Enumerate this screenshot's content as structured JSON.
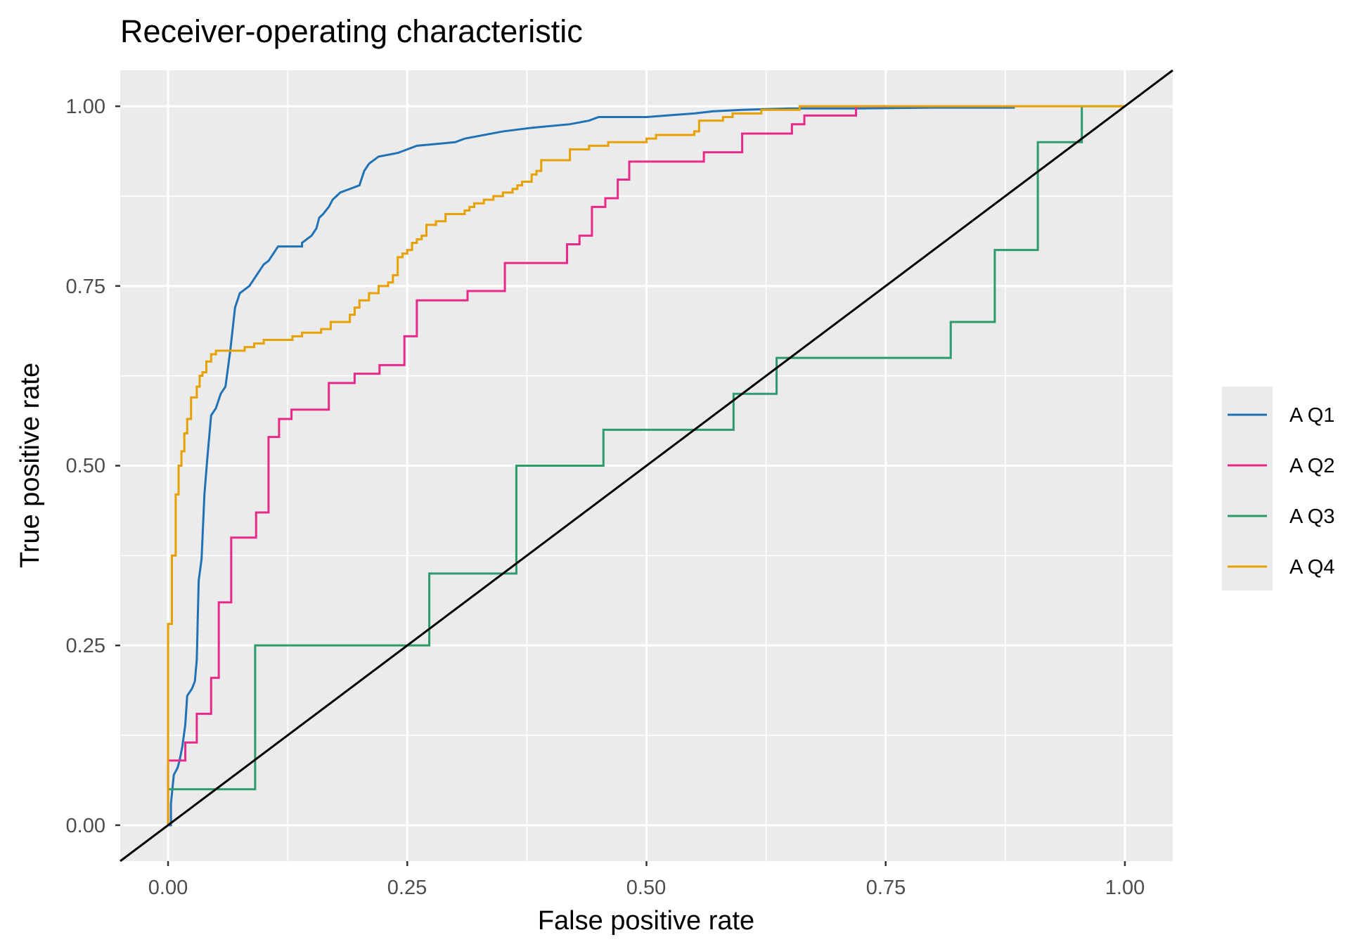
{
  "chart_data": {
    "type": "line",
    "title": "Receiver-operating characteristic",
    "xlabel": "False positive rate",
    "ylabel": "True positive rate",
    "xlim": [
      -0.05,
      1.05
    ],
    "ylim": [
      -0.05,
      1.05
    ],
    "x_ticks": [
      "0.00",
      "0.25",
      "0.50",
      "0.75",
      "1.00"
    ],
    "y_ticks": [
      "0.00",
      "0.25",
      "0.50",
      "0.75",
      "1.00"
    ],
    "grid": true,
    "legend_position": "right",
    "reference_line": {
      "x": [
        -0.05,
        1.05
      ],
      "y": [
        -0.05,
        1.05
      ],
      "color": "#000000"
    },
    "series": [
      {
        "name": "A Q1",
        "color": "#2171b5",
        "points": [
          [
            0,
            0
          ],
          [
            0.003,
            0
          ],
          [
            0.003,
            0.03
          ],
          [
            0.006,
            0.07
          ],
          [
            0.01,
            0.08
          ],
          [
            0.012,
            0.09
          ],
          [
            0.015,
            0.11
          ],
          [
            0.018,
            0.14
          ],
          [
            0.02,
            0.18
          ],
          [
            0.025,
            0.19
          ],
          [
            0.028,
            0.2
          ],
          [
            0.03,
            0.23
          ],
          [
            0.032,
            0.34
          ],
          [
            0.035,
            0.37
          ],
          [
            0.038,
            0.46
          ],
          [
            0.041,
            0.51
          ],
          [
            0.045,
            0.57
          ],
          [
            0.05,
            0.58
          ],
          [
            0.055,
            0.6
          ],
          [
            0.06,
            0.61
          ],
          [
            0.065,
            0.66
          ],
          [
            0.07,
            0.72
          ],
          [
            0.075,
            0.74
          ],
          [
            0.08,
            0.745
          ],
          [
            0.085,
            0.75
          ],
          [
            0.09,
            0.76
          ],
          [
            0.095,
            0.77
          ],
          [
            0.1,
            0.78
          ],
          [
            0.105,
            0.785
          ],
          [
            0.11,
            0.795
          ],
          [
            0.115,
            0.805
          ],
          [
            0.14,
            0.805
          ],
          [
            0.14,
            0.81
          ],
          [
            0.145,
            0.815
          ],
          [
            0.15,
            0.82
          ],
          [
            0.155,
            0.83
          ],
          [
            0.158,
            0.845
          ],
          [
            0.162,
            0.85
          ],
          [
            0.168,
            0.86
          ],
          [
            0.172,
            0.87
          ],
          [
            0.18,
            0.88
          ],
          [
            0.19,
            0.885
          ],
          [
            0.2,
            0.89
          ],
          [
            0.205,
            0.91
          ],
          [
            0.21,
            0.92
          ],
          [
            0.22,
            0.93
          ],
          [
            0.24,
            0.935
          ],
          [
            0.25,
            0.94
          ],
          [
            0.26,
            0.945
          ],
          [
            0.3,
            0.95
          ],
          [
            0.31,
            0.955
          ],
          [
            0.33,
            0.96
          ],
          [
            0.35,
            0.965
          ],
          [
            0.38,
            0.97
          ],
          [
            0.42,
            0.975
          ],
          [
            0.44,
            0.98
          ],
          [
            0.45,
            0.985
          ],
          [
            0.5,
            0.985
          ],
          [
            0.53,
            0.988
          ],
          [
            0.55,
            0.99
          ],
          [
            0.57,
            0.993
          ],
          [
            0.6,
            0.995
          ],
          [
            0.65,
            0.997
          ],
          [
            0.72,
            0.997
          ],
          [
            0.8,
            0.998
          ],
          [
            0.885,
            0.998
          ]
        ]
      },
      {
        "name": "A Q2",
        "color": "#e7298a",
        "points": [
          [
            0,
            0
          ],
          [
            0,
            0.09
          ],
          [
            0.018,
            0.09
          ],
          [
            0.018,
            0.115
          ],
          [
            0.03,
            0.115
          ],
          [
            0.03,
            0.155
          ],
          [
            0.045,
            0.155
          ],
          [
            0.045,
            0.205
          ],
          [
            0.053,
            0.205
          ],
          [
            0.053,
            0.31
          ],
          [
            0.066,
            0.31
          ],
          [
            0.066,
            0.4
          ],
          [
            0.092,
            0.4
          ],
          [
            0.092,
            0.435
          ],
          [
            0.105,
            0.435
          ],
          [
            0.105,
            0.54
          ],
          [
            0.116,
            0.54
          ],
          [
            0.116,
            0.565
          ],
          [
            0.129,
            0.565
          ],
          [
            0.129,
            0.578
          ],
          [
            0.168,
            0.578
          ],
          [
            0.168,
            0.615
          ],
          [
            0.195,
            0.615
          ],
          [
            0.195,
            0.628
          ],
          [
            0.221,
            0.628
          ],
          [
            0.221,
            0.64
          ],
          [
            0.247,
            0.64
          ],
          [
            0.247,
            0.68
          ],
          [
            0.26,
            0.68
          ],
          [
            0.26,
            0.73
          ],
          [
            0.313,
            0.73
          ],
          [
            0.313,
            0.743
          ],
          [
            0.352,
            0.743
          ],
          [
            0.352,
            0.782
          ],
          [
            0.417,
            0.782
          ],
          [
            0.417,
            0.808
          ],
          [
            0.43,
            0.808
          ],
          [
            0.43,
            0.82
          ],
          [
            0.443,
            0.82
          ],
          [
            0.443,
            0.845
          ],
          [
            0.443,
            0.86
          ],
          [
            0.457,
            0.86
          ],
          [
            0.457,
            0.872
          ],
          [
            0.47,
            0.872
          ],
          [
            0.47,
            0.898
          ],
          [
            0.482,
            0.898
          ],
          [
            0.482,
            0.923
          ],
          [
            0.56,
            0.923
          ],
          [
            0.56,
            0.936
          ],
          [
            0.6,
            0.936
          ],
          [
            0.6,
            0.962
          ],
          [
            0.652,
            0.962
          ],
          [
            0.652,
            0.975
          ],
          [
            0.665,
            0.975
          ],
          [
            0.665,
            0.987
          ],
          [
            0.719,
            0.987
          ],
          [
            0.719,
            1.0
          ],
          [
            0.75,
            1.0
          ]
        ]
      },
      {
        "name": "A Q3",
        "color": "#2e9b6e",
        "points": [
          [
            0,
            0
          ],
          [
            0,
            0.05
          ],
          [
            0.091,
            0.05
          ],
          [
            0.091,
            0.25
          ],
          [
            0.273,
            0.25
          ],
          [
            0.273,
            0.35
          ],
          [
            0.364,
            0.35
          ],
          [
            0.364,
            0.5
          ],
          [
            0.455,
            0.5
          ],
          [
            0.455,
            0.55
          ],
          [
            0.591,
            0.55
          ],
          [
            0.591,
            0.6
          ],
          [
            0.636,
            0.6
          ],
          [
            0.636,
            0.65
          ],
          [
            0.818,
            0.65
          ],
          [
            0.818,
            0.7
          ],
          [
            0.864,
            0.7
          ],
          [
            0.864,
            0.8
          ],
          [
            0.909,
            0.8
          ],
          [
            0.909,
            0.95
          ],
          [
            0.955,
            0.95
          ],
          [
            0.955,
            1.0
          ],
          [
            1.0,
            1.0
          ]
        ]
      },
      {
        "name": "A Q4",
        "color": "#e6a000",
        "points": [
          [
            0,
            0
          ],
          [
            0,
            0.28
          ],
          [
            0.004,
            0.28
          ],
          [
            0.004,
            0.375
          ],
          [
            0.008,
            0.375
          ],
          [
            0.008,
            0.46
          ],
          [
            0.011,
            0.46
          ],
          [
            0.011,
            0.5
          ],
          [
            0.014,
            0.5
          ],
          [
            0.014,
            0.52
          ],
          [
            0.017,
            0.52
          ],
          [
            0.017,
            0.545
          ],
          [
            0.02,
            0.545
          ],
          [
            0.02,
            0.565
          ],
          [
            0.024,
            0.565
          ],
          [
            0.024,
            0.595
          ],
          [
            0.03,
            0.595
          ],
          [
            0.03,
            0.61
          ],
          [
            0.033,
            0.61
          ],
          [
            0.033,
            0.625
          ],
          [
            0.036,
            0.625
          ],
          [
            0.036,
            0.63
          ],
          [
            0.04,
            0.63
          ],
          [
            0.04,
            0.645
          ],
          [
            0.045,
            0.645
          ],
          [
            0.045,
            0.655
          ],
          [
            0.05,
            0.655
          ],
          [
            0.05,
            0.66
          ],
          [
            0.08,
            0.66
          ],
          [
            0.08,
            0.665
          ],
          [
            0.09,
            0.665
          ],
          [
            0.09,
            0.67
          ],
          [
            0.1,
            0.67
          ],
          [
            0.1,
            0.675
          ],
          [
            0.13,
            0.675
          ],
          [
            0.13,
            0.68
          ],
          [
            0.14,
            0.68
          ],
          [
            0.14,
            0.685
          ],
          [
            0.16,
            0.685
          ],
          [
            0.16,
            0.69
          ],
          [
            0.17,
            0.69
          ],
          [
            0.17,
            0.7
          ],
          [
            0.19,
            0.7
          ],
          [
            0.19,
            0.71
          ],
          [
            0.195,
            0.71
          ],
          [
            0.195,
            0.72
          ],
          [
            0.2,
            0.72
          ],
          [
            0.2,
            0.73
          ],
          [
            0.21,
            0.73
          ],
          [
            0.21,
            0.74
          ],
          [
            0.22,
            0.74
          ],
          [
            0.22,
            0.75
          ],
          [
            0.23,
            0.75
          ],
          [
            0.23,
            0.755
          ],
          [
            0.235,
            0.755
          ],
          [
            0.235,
            0.765
          ],
          [
            0.24,
            0.765
          ],
          [
            0.24,
            0.79
          ],
          [
            0.245,
            0.79
          ],
          [
            0.245,
            0.795
          ],
          [
            0.25,
            0.795
          ],
          [
            0.25,
            0.8
          ],
          [
            0.255,
            0.8
          ],
          [
            0.255,
            0.81
          ],
          [
            0.26,
            0.81
          ],
          [
            0.26,
            0.815
          ],
          [
            0.265,
            0.815
          ],
          [
            0.265,
            0.82
          ],
          [
            0.27,
            0.82
          ],
          [
            0.27,
            0.835
          ],
          [
            0.28,
            0.835
          ],
          [
            0.28,
            0.84
          ],
          [
            0.29,
            0.84
          ],
          [
            0.29,
            0.85
          ],
          [
            0.31,
            0.85
          ],
          [
            0.31,
            0.855
          ],
          [
            0.315,
            0.855
          ],
          [
            0.315,
            0.86
          ],
          [
            0.32,
            0.86
          ],
          [
            0.32,
            0.865
          ],
          [
            0.33,
            0.865
          ],
          [
            0.33,
            0.87
          ],
          [
            0.34,
            0.87
          ],
          [
            0.34,
            0.875
          ],
          [
            0.35,
            0.875
          ],
          [
            0.35,
            0.88
          ],
          [
            0.36,
            0.88
          ],
          [
            0.36,
            0.885
          ],
          [
            0.365,
            0.885
          ],
          [
            0.365,
            0.89
          ],
          [
            0.37,
            0.89
          ],
          [
            0.37,
            0.895
          ],
          [
            0.38,
            0.895
          ],
          [
            0.38,
            0.9
          ],
          [
            0.38,
            0.905
          ],
          [
            0.385,
            0.905
          ],
          [
            0.385,
            0.91
          ],
          [
            0.39,
            0.91
          ],
          [
            0.39,
            0.915
          ],
          [
            0.39,
            0.925
          ],
          [
            0.42,
            0.925
          ],
          [
            0.42,
            0.94
          ],
          [
            0.44,
            0.94
          ],
          [
            0.44,
            0.945
          ],
          [
            0.46,
            0.945
          ],
          [
            0.46,
            0.95
          ],
          [
            0.5,
            0.95
          ],
          [
            0.5,
            0.955
          ],
          [
            0.51,
            0.955
          ],
          [
            0.51,
            0.96
          ],
          [
            0.55,
            0.96
          ],
          [
            0.55,
            0.965
          ],
          [
            0.555,
            0.965
          ],
          [
            0.555,
            0.98
          ],
          [
            0.58,
            0.98
          ],
          [
            0.58,
            0.985
          ],
          [
            0.59,
            0.985
          ],
          [
            0.59,
            0.99
          ],
          [
            0.62,
            0.99
          ],
          [
            0.62,
            0.995
          ],
          [
            0.66,
            0.995
          ],
          [
            0.66,
            1.0
          ],
          [
            1.0,
            1.0
          ]
        ]
      }
    ]
  }
}
